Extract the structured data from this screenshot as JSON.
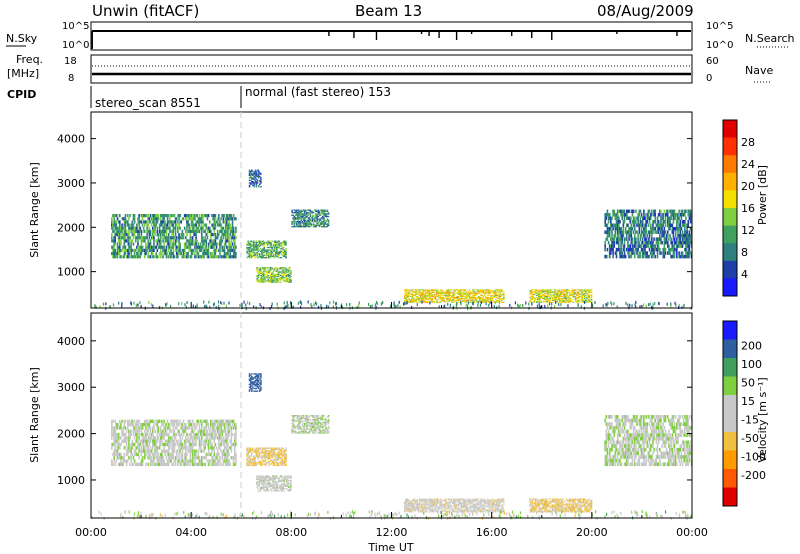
{
  "header": {
    "station": "Unwin (fitACF)",
    "beam": "Beam 13",
    "date": "08/Aug/2009"
  },
  "panels": {
    "nsky": {
      "label": "N.Sky",
      "right_label": "N.Search",
      "left_ticks": [
        "10^5",
        "10^0"
      ],
      "right_ticks": [
        "10^5",
        "10^0"
      ]
    },
    "freq": {
      "label_1": "Freq.",
      "label_2": "[MHz]",
      "right_label": "Nave",
      "left_ticks": [
        "18",
        "8"
      ],
      "right_ticks": [
        "60",
        "0"
      ]
    },
    "cpid": {
      "label": "CPID",
      "segments": [
        {
          "text": "stereo_scan 8551",
          "start_hour": 0
        },
        {
          "text": "normal (fast stereo) 153",
          "start_hour": 6.0
        }
      ]
    }
  },
  "colors": {
    "power": [
      "#1a1aff",
      "#1f3fa8",
      "#2f7f7f",
      "#3fa05f",
      "#7fcf3f",
      "#f2e000",
      "#ffb000",
      "#ff7a00",
      "#ff3000",
      "#e00000"
    ],
    "velocity": [
      "#e00000",
      "#ff5a00",
      "#ff9a00",
      "#f2c040",
      "#c8c8c8",
      "#c8c8c8",
      "#7fd03f",
      "#3f9f5f",
      "#2f5fa0",
      "#1a1aff"
    ]
  },
  "chart_data": [
    {
      "type": "heatmap",
      "name": "power",
      "ylabel": "Slant Range [km]",
      "ylim": [
        180,
        4600
      ],
      "xlim_hours": [
        0,
        24
      ],
      "yticks": [
        1000,
        2000,
        3000,
        4000
      ],
      "colorbar": {
        "label": "Power [dB]",
        "range": [
          0,
          32
        ],
        "ticks": [
          4,
          8,
          12,
          16,
          20,
          24,
          28
        ]
      },
      "regions": [
        {
          "t0": 0.8,
          "t1": 5.8,
          "r0": 1300,
          "r1": 2300,
          "value": 10
        },
        {
          "t0": 6.2,
          "t1": 7.8,
          "r0": 1300,
          "r1": 1700,
          "value": 12
        },
        {
          "t0": 6.6,
          "t1": 8.0,
          "r0": 750,
          "r1": 1100,
          "value": 14
        },
        {
          "t0": 8.0,
          "t1": 9.5,
          "r0": 2000,
          "r1": 2400,
          "value": 9
        },
        {
          "t0": 12.5,
          "t1": 16.5,
          "r0": 300,
          "r1": 600,
          "value": 18
        },
        {
          "t0": 17.5,
          "t1": 20.0,
          "r0": 300,
          "r1": 600,
          "value": 17
        },
        {
          "t0": 20.5,
          "t1": 24.0,
          "r0": 1300,
          "r1": 2400,
          "value": 8
        },
        {
          "t0": 6.3,
          "t1": 6.8,
          "r0": 2900,
          "r1": 3300,
          "value": 6
        }
      ]
    },
    {
      "type": "heatmap",
      "name": "velocity",
      "ylabel": "Slant Range [km]",
      "xlabel": "Time UT",
      "ylim": [
        180,
        4600
      ],
      "xlim_hours": [
        0,
        24
      ],
      "yticks": [
        1000,
        2000,
        3000,
        4000
      ],
      "xticks": [
        "00:00",
        "04:00",
        "08:00",
        "12:00",
        "16:00",
        "20:00",
        "00:00"
      ],
      "colorbar": {
        "label": "Velocity [m s⁻¹]",
        "ticks": [
          "200",
          "100",
          "50",
          "15",
          "-15",
          "-50",
          "-100",
          "-200"
        ]
      },
      "regions": [
        {
          "t0": 0.8,
          "t1": 5.8,
          "r0": 1300,
          "r1": 2300,
          "value": 0
        },
        {
          "t0": 6.2,
          "t1": 7.8,
          "r0": 1300,
          "r1": 1700,
          "value": -60
        },
        {
          "t0": 6.6,
          "t1": 8.0,
          "r0": 750,
          "r1": 1100,
          "value": -10
        },
        {
          "t0": 8.0,
          "t1": 9.5,
          "r0": 2000,
          "r1": 2400,
          "value": 0
        },
        {
          "t0": 12.5,
          "t1": 16.5,
          "r0": 300,
          "r1": 600,
          "value": -30
        },
        {
          "t0": 17.5,
          "t1": 20.0,
          "r0": 300,
          "r1": 600,
          "value": -60
        },
        {
          "t0": 20.5,
          "t1": 24.0,
          "r0": 1300,
          "r1": 2400,
          "value": 5
        },
        {
          "t0": 6.3,
          "t1": 6.8,
          "r0": 2900,
          "r1": 3300,
          "value": 150
        }
      ]
    }
  ]
}
